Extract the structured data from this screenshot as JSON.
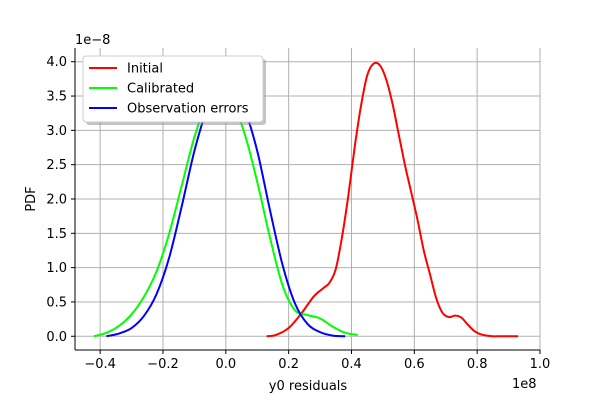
{
  "chart_data": {
    "type": "line",
    "xlabel": "y0 residuals",
    "ylabel": "PDF",
    "x_offset_text": "1e8",
    "y_offset_text": "1e−8",
    "xlim": [
      -0.48,
      1.0
    ],
    "ylim": [
      -0.2,
      4.2
    ],
    "x_ticks": [
      -0.4,
      -0.2,
      0.0,
      0.2,
      0.4,
      0.6,
      0.8,
      1.0
    ],
    "x_tick_labels": [
      "−0.4",
      "−0.2",
      "0.0",
      "0.2",
      "0.4",
      "0.6",
      "0.8",
      "1.0"
    ],
    "y_ticks": [
      0.0,
      0.5,
      1.0,
      1.5,
      2.0,
      2.5,
      3.0,
      3.5,
      4.0
    ],
    "y_tick_labels": [
      "0.0",
      "0.5",
      "1.0",
      "1.5",
      "2.0",
      "2.5",
      "3.0",
      "3.5",
      "4.0"
    ],
    "grid": true,
    "legend_position": "top-left",
    "series": [
      {
        "name": "Initial",
        "color": "#ff0000",
        "x": [
          0.13,
          0.16,
          0.2,
          0.24,
          0.28,
          0.31,
          0.33,
          0.35,
          0.37,
          0.39,
          0.41,
          0.43,
          0.45,
          0.47,
          0.49,
          0.51,
          0.53,
          0.55,
          0.57,
          0.59,
          0.61,
          0.63,
          0.65,
          0.67,
          0.69,
          0.71,
          0.73,
          0.75,
          0.77,
          0.79,
          0.81,
          0.83,
          0.85,
          0.87,
          0.89,
          0.91,
          0.93
        ],
        "y": [
          0.0,
          0.02,
          0.12,
          0.33,
          0.58,
          0.7,
          0.78,
          0.98,
          1.45,
          2.05,
          2.75,
          3.35,
          3.8,
          3.97,
          3.95,
          3.75,
          3.4,
          2.95,
          2.5,
          2.1,
          1.7,
          1.25,
          0.9,
          0.55,
          0.34,
          0.28,
          0.3,
          0.27,
          0.17,
          0.08,
          0.03,
          0.01,
          0.0,
          0.0,
          0.0,
          0.0,
          0.0
        ]
      },
      {
        "name": "Calibrated",
        "color": "#00ff00",
        "x": [
          -0.42,
          -0.38,
          -0.34,
          -0.3,
          -0.26,
          -0.22,
          -0.18,
          -0.14,
          -0.1,
          -0.06,
          -0.02,
          0.02,
          0.06,
          0.1,
          0.14,
          0.18,
          0.22,
          0.26,
          0.3,
          0.34,
          0.38,
          0.42
        ],
        "y": [
          0.0,
          0.05,
          0.15,
          0.32,
          0.58,
          0.95,
          1.5,
          2.2,
          2.9,
          3.4,
          3.55,
          3.4,
          2.95,
          2.25,
          1.45,
          0.75,
          0.38,
          0.31,
          0.26,
          0.14,
          0.05,
          0.02
        ]
      },
      {
        "name": "Observation errors",
        "color": "#0000ff",
        "x": [
          -0.38,
          -0.34,
          -0.3,
          -0.26,
          -0.22,
          -0.18,
          -0.14,
          -0.1,
          -0.06,
          -0.02,
          0.02,
          0.06,
          0.1,
          0.14,
          0.18,
          0.22,
          0.26,
          0.3,
          0.34,
          0.38
        ],
        "y": [
          0.0,
          0.04,
          0.12,
          0.3,
          0.62,
          1.15,
          1.9,
          2.7,
          3.3,
          3.6,
          3.6,
          3.3,
          2.7,
          1.85,
          1.05,
          0.48,
          0.18,
          0.06,
          0.01,
          0.0
        ]
      }
    ]
  }
}
